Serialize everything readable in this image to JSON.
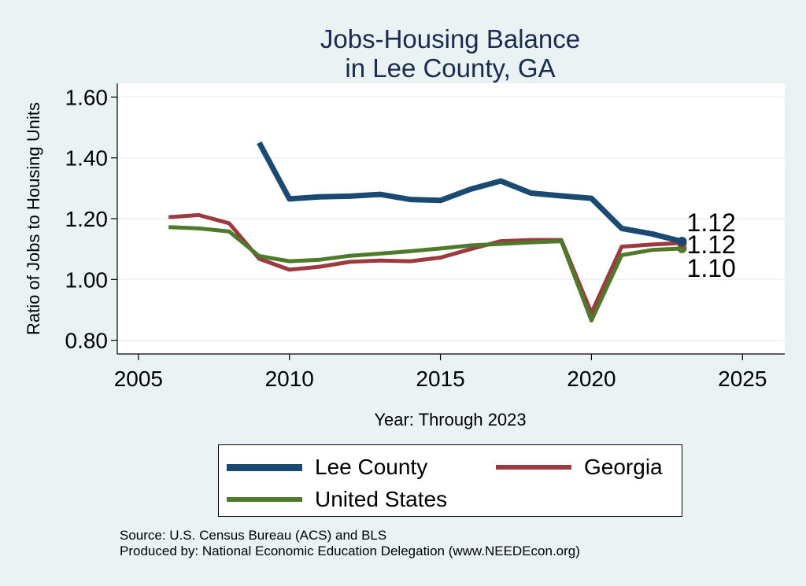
{
  "chart_data": {
    "type": "line",
    "title": [
      "Jobs-Housing Balance",
      "in Lee County, GA"
    ],
    "xlabel": "Year: Through 2023",
    "ylabel": "Ratio of Jobs to Housing Units",
    "xlim": [
      2004.3,
      2026.4
    ],
    "ylim": [
      0.755,
      1.645
    ],
    "xticks": [
      2005,
      2010,
      2015,
      2020,
      2025
    ],
    "yticks": [
      0.8,
      1.0,
      1.2,
      1.4,
      1.6
    ],
    "ytick_labels": [
      "0.80",
      "1.00",
      "1.20",
      "1.40",
      "1.60"
    ],
    "grid": true,
    "series": [
      {
        "name": "Lee County",
        "color": "#1a4a72",
        "width": 7,
        "x": [
          2009,
          2010,
          2011,
          2012,
          2013,
          2014,
          2015,
          2016,
          2017,
          2018,
          2019,
          2020,
          2021,
          2022,
          2023
        ],
        "y": [
          1.45,
          1.265,
          1.272,
          1.274,
          1.28,
          1.263,
          1.26,
          1.297,
          1.324,
          1.284,
          1.275,
          1.267,
          1.168,
          1.15,
          1.125
        ]
      },
      {
        "name": "Georgia",
        "color": "#9b3a3f",
        "width": 5,
        "x": [
          2006,
          2007,
          2008,
          2009,
          2010,
          2011,
          2012,
          2013,
          2014,
          2015,
          2016,
          2017,
          2018,
          2019,
          2020,
          2021,
          2022,
          2023
        ],
        "y": [
          1.205,
          1.212,
          1.185,
          1.068,
          1.032,
          1.042,
          1.058,
          1.062,
          1.06,
          1.072,
          1.1,
          1.126,
          1.13,
          1.13,
          0.89,
          1.108,
          1.115,
          1.12
        ]
      },
      {
        "name": "United States",
        "color": "#4e7a2c",
        "width": 5,
        "x": [
          2006,
          2007,
          2008,
          2009,
          2010,
          2011,
          2012,
          2013,
          2014,
          2015,
          2016,
          2017,
          2018,
          2019,
          2020,
          2021,
          2022,
          2023
        ],
        "y": [
          1.172,
          1.168,
          1.158,
          1.077,
          1.06,
          1.065,
          1.078,
          1.085,
          1.093,
          1.102,
          1.112,
          1.117,
          1.122,
          1.126,
          0.865,
          1.08,
          1.097,
          1.102
        ]
      }
    ],
    "annotations": [
      {
        "series": "Lee County",
        "x": 2023,
        "text": "1.12"
      },
      {
        "series": "Georgia",
        "x": 2023,
        "text": "1.12"
      },
      {
        "series": "United States",
        "x": 2023,
        "text": "1.10"
      }
    ],
    "legend": {
      "placement": "bottom",
      "items": [
        "Lee County",
        "Georgia",
        "United States"
      ]
    }
  },
  "source": {
    "line1": "Source: U.S. Census Bureau (ACS) and BLS",
    "line2": "Produced by: National Economic Education Delegation (www.NEEDEcon.org)"
  }
}
